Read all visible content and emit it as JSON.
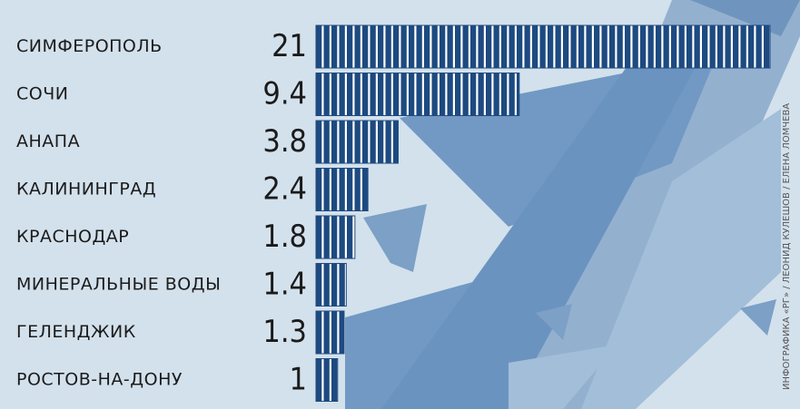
{
  "chart_data": {
    "type": "bar",
    "categories": [
      "СИМФЕРОПОЛЬ",
      "СОЧИ",
      "АНАПА",
      "КАЛИНИНГРАД",
      "КРАСНОДАР",
      "МИНЕРАЛЬНЫЕ ВОДЫ",
      "ГЕЛЕНДЖИК",
      "РОСТОВ-НА-ДОНУ"
    ],
    "values": [
      21,
      9.4,
      3.8,
      2.4,
      1.8,
      1.4,
      1.3,
      1
    ],
    "color": "#1d4a80",
    "credit": "ИНФОГРАФИКА «РГ» / ЛЕОНИД КУЛЕШОВ / ЕЛЕНА ЛОМЧЕВА"
  }
}
